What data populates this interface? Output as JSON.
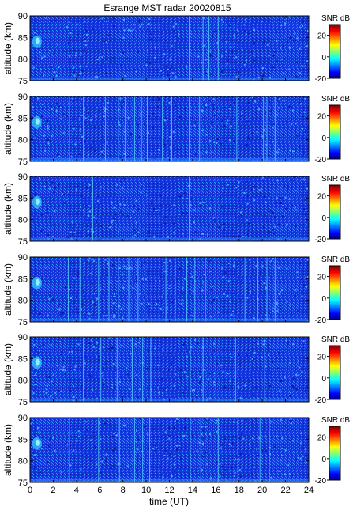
{
  "figure": {
    "title": "Esrange MST radar 20020815",
    "xlabel": "time (UT)",
    "ylabel": "altitude (km)",
    "colorbar_label": "SNR dB"
  },
  "chart_data": [
    {
      "type": "heatmap",
      "title": "Esrange MST radar 20020815",
      "xlabel": "",
      "ylabel": "altitude (km)",
      "xlim": [
        0,
        24
      ],
      "ylim": [
        75,
        90
      ],
      "x_ticks": [],
      "y_ticks": [
        75,
        80,
        85,
        90
      ],
      "colorbar": {
        "label": "SNR dB",
        "range": [
          -20,
          30
        ],
        "ticks": [
          -20,
          0,
          20
        ]
      },
      "vertical_stripes_ut": [
        13.7,
        14.9,
        15.4,
        16.2
      ],
      "grid": false
    },
    {
      "type": "heatmap",
      "title": "",
      "xlabel": "",
      "ylabel": "altitude (km)",
      "xlim": [
        0,
        24
      ],
      "ylim": [
        75,
        90
      ],
      "x_ticks": [],
      "y_ticks": [
        75,
        80,
        85,
        90
      ],
      "colorbar": {
        "label": "SNR dB",
        "range": [
          -20,
          30
        ],
        "ticks": [
          -20,
          0,
          20
        ]
      },
      "vertical_stripes_ut": [
        3.4,
        4.6,
        6.5,
        7.6,
        8.2,
        9.0,
        9.6,
        10.1,
        11.4,
        12.2,
        13.7,
        14.6,
        16.0,
        17.8,
        20.1,
        20.4,
        21.1
      ],
      "grid": false
    },
    {
      "type": "heatmap",
      "title": "",
      "xlabel": "",
      "ylabel": "altitude (km)",
      "xlim": [
        0,
        24
      ],
      "ylim": [
        75,
        90
      ],
      "x_ticks": [],
      "y_ticks": [
        75,
        80,
        85,
        90
      ],
      "colorbar": {
        "label": "SNR dB",
        "range": [
          -20,
          30
        ],
        "ticks": [
          -20,
          0,
          20
        ]
      },
      "vertical_stripes_ut": [
        5.4,
        13.7,
        16.0
      ],
      "grid": false
    },
    {
      "type": "heatmap",
      "title": "",
      "xlabel": "",
      "ylabel": "altitude (km)",
      "xlim": [
        0,
        24
      ],
      "ylim": [
        75,
        90
      ],
      "x_ticks": [],
      "y_ticks": [
        75,
        80,
        85,
        90
      ],
      "colorbar": {
        "label": "SNR dB",
        "range": [
          -20,
          30
        ],
        "ticks": [
          -20,
          0,
          20
        ]
      },
      "vertical_stripes_ut": [
        3.3,
        4.3,
        5.9,
        6.8,
        7.6,
        8.5,
        9.3,
        9.9,
        10.5,
        11.7,
        12.5,
        13.5,
        14.2,
        15.1,
        16.0,
        17.3,
        18.5,
        19.6,
        20.4,
        21.1
      ],
      "grid": false
    },
    {
      "type": "heatmap",
      "title": "",
      "xlabel": "",
      "ylabel": "altitude (km)",
      "xlim": [
        0,
        24
      ],
      "ylim": [
        75,
        90
      ],
      "x_ticks": [],
      "y_ticks": [
        75,
        80,
        85,
        90
      ],
      "colorbar": {
        "label": "SNR dB",
        "range": [
          -20,
          30
        ],
        "ticks": [
          -20,
          0,
          20
        ]
      },
      "vertical_stripes_ut": [
        4.6,
        6.1,
        7.5,
        8.8,
        9.7,
        10.4,
        13.8,
        14.9,
        16.0,
        17.7,
        20.2
      ],
      "grid": false
    },
    {
      "type": "heatmap",
      "title": "",
      "xlabel": "time (UT)",
      "ylabel": "altitude (km)",
      "xlim": [
        0,
        24
      ],
      "ylim": [
        75,
        90
      ],
      "x_ticks": [
        0,
        2,
        4,
        6,
        8,
        10,
        12,
        14,
        16,
        18,
        20,
        22,
        24
      ],
      "y_ticks": [
        75,
        80,
        85,
        90
      ],
      "colorbar": {
        "label": "SNR dB",
        "range": [
          -20,
          30
        ],
        "ticks": [
          -20,
          0,
          20
        ]
      },
      "vertical_stripes_ut": [
        3.4,
        5.9,
        7.7,
        9.0,
        9.7,
        10.3,
        13.8,
        14.7,
        16.2,
        17.9,
        19.8,
        20.6
      ],
      "grid": false
    }
  ]
}
